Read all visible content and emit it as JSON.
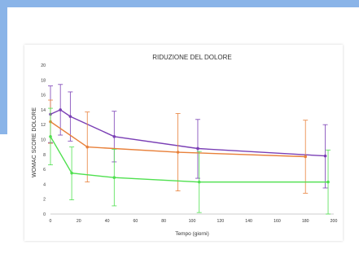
{
  "chart_data": {
    "type": "line",
    "title": "RIDUZIONE DEL DOLORE",
    "xlabel": "Tempo (giorni)",
    "ylabel": "WOMAC SCORE DOLORE",
    "xlim": [
      0,
      200
    ],
    "ylim": [
      0,
      20
    ],
    "xticks": [
      0,
      20,
      40,
      60,
      80,
      100,
      120,
      140,
      160,
      180,
      200
    ],
    "yticks": [
      0,
      2,
      4,
      6,
      8,
      10,
      12,
      14,
      16,
      18,
      20
    ],
    "grid": false,
    "legend": "none",
    "series": [
      {
        "color": "#7a3fb5",
        "points": [
          {
            "x": 0,
            "y": 13.4,
            "lo": 9.6,
            "hi": 17.2
          },
          {
            "x": 7,
            "y": 14.0,
            "lo": 10.6,
            "hi": 17.4
          },
          {
            "x": 14,
            "y": 13.1,
            "lo": 9.8,
            "hi": 16.4
          },
          {
            "x": 45,
            "y": 10.4,
            "lo": 7.0,
            "hi": 13.8
          },
          {
            "x": 104,
            "y": 8.8,
            "lo": 4.8,
            "hi": 12.7
          },
          {
            "x": 194,
            "y": 7.8,
            "lo": 3.5,
            "hi": 12.0
          }
        ]
      },
      {
        "color": "#e8803a",
        "points": [
          {
            "x": 0,
            "y": 12.4,
            "lo": 9.5,
            "hi": 15.3
          },
          {
            "x": 26,
            "y": 9.0,
            "lo": 4.3,
            "hi": 13.7
          },
          {
            "x": 90,
            "y": 8.3,
            "lo": 3.1,
            "hi": 13.5
          },
          {
            "x": 180,
            "y": 7.7,
            "lo": 2.8,
            "hi": 12.6
          }
        ]
      },
      {
        "color": "#4fe04f",
        "points": [
          {
            "x": 0,
            "y": 10.4,
            "lo": 6.6,
            "hi": 14.2
          },
          {
            "x": 15,
            "y": 5.5,
            "lo": 1.9,
            "hi": 9.0
          },
          {
            "x": 45,
            "y": 4.9,
            "lo": 1.1,
            "hi": 8.7
          },
          {
            "x": 105,
            "y": 4.3,
            "lo": 0.2,
            "hi": 8.4
          },
          {
            "x": 196,
            "y": 4.3,
            "lo": 0.0,
            "hi": 8.6
          }
        ]
      }
    ]
  },
  "colors": {
    "accent": "#8ab4e8",
    "axis_text": "#333333"
  }
}
